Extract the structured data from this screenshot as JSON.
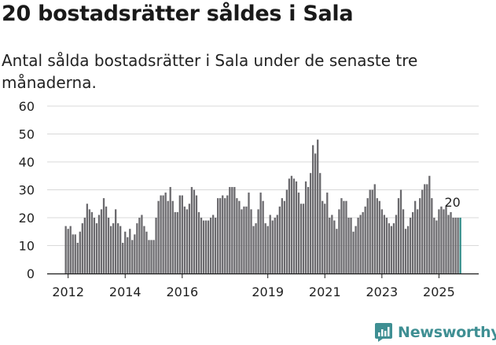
{
  "header": {
    "title": "20 bostadsrätter såldes i Sala",
    "subtitle": "Antal sålda bostadsrätter i Sala under de senaste tre månaderna."
  },
  "brand": {
    "name": "Newsworthy",
    "color": "#3f8f93"
  },
  "chart_data": {
    "type": "bar",
    "title": "20 bostadsrätter såldes i Sala",
    "subtitle": "Antal sålda bostadsrätter i Sala under de senaste tre månaderna.",
    "xlabel": "",
    "ylabel": "",
    "ylim": [
      0,
      60
    ],
    "yticks": [
      0,
      10,
      20,
      30,
      40,
      50,
      60
    ],
    "grid": true,
    "x_start": "2011-12",
    "x_tick_labels": [
      "2012",
      "2014",
      "2016",
      "2019",
      "2021",
      "2023",
      "2025"
    ],
    "x_tick_month_index": [
      1,
      25,
      49,
      85,
      109,
      133,
      157
    ],
    "bar_color": "#6b6a6e",
    "highlight_color": "#2e8a86",
    "highlight_index": 166,
    "last_value_label": "20",
    "values": [
      17,
      16,
      17,
      14,
      14,
      11,
      15,
      18,
      20,
      25,
      23,
      22,
      20,
      18,
      21,
      23,
      27,
      24,
      20,
      17,
      18,
      23,
      18,
      17,
      11,
      15,
      13,
      16,
      12,
      14,
      18,
      20,
      21,
      17,
      15,
      12,
      12,
      12,
      20,
      26,
      28,
      28,
      29,
      26,
      31,
      26,
      22,
      22,
      28,
      28,
      24,
      23,
      25,
      31,
      30,
      28,
      22,
      20,
      19,
      19,
      19,
      20,
      21,
      20,
      27,
      27,
      28,
      27,
      28,
      31,
      31,
      31,
      27,
      26,
      23,
      24,
      24,
      29,
      23,
      17,
      18,
      23,
      29,
      26,
      18,
      17,
      21,
      19,
      20,
      21,
      24,
      27,
      26,
      30,
      34,
      35,
      34,
      33,
      29,
      25,
      25,
      33,
      31,
      36,
      46,
      43,
      48,
      36,
      26,
      25,
      29,
      20,
      21,
      19,
      16,
      23,
      27,
      26,
      26,
      20,
      20,
      15,
      17,
      20,
      21,
      22,
      24,
      27,
      30,
      30,
      32,
      27,
      26,
      23,
      21,
      20,
      18,
      17,
      18,
      21,
      27,
      30,
      23,
      16,
      17,
      20,
      22,
      26,
      23,
      27,
      30,
      32,
      32,
      35,
      27,
      20,
      19,
      23,
      24,
      23,
      24,
      21,
      22,
      20,
      20,
      20,
      20
    ]
  }
}
